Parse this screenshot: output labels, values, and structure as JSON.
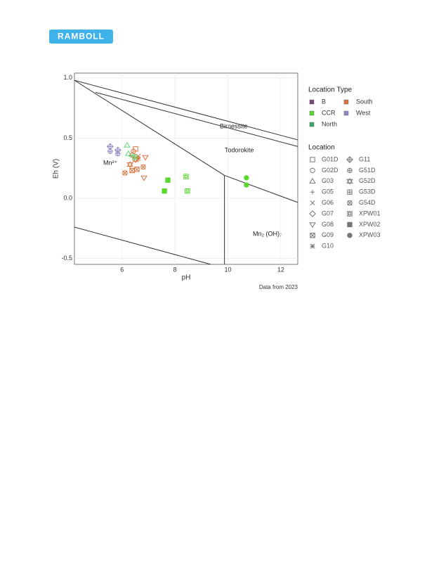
{
  "logo": "RAMBOLL",
  "chart_data": {
    "type": "scatter",
    "x_label": "pH",
    "y_label": "Eh (V)",
    "caption": "Data from 2023",
    "xlim": [
      4.2,
      12.64
    ],
    "ylim": [
      -0.55,
      1.04
    ],
    "xticks": [
      6,
      8,
      10,
      12
    ],
    "yticks": [
      -0.5,
      {
        "value": 0,
        "label": "0.0"
      },
      0.5,
      {
        "value": 1,
        "label": "1.0"
      }
    ],
    "grid": true,
    "boundaries": [
      {
        "x": [
          4.2,
          12.64
        ],
        "y": [
          0.98,
          0.485
        ]
      },
      {
        "x": [
          5.0,
          12.64
        ],
        "y": [
          0.88,
          0.43
        ]
      },
      {
        "x": [
          4.2,
          9.87
        ],
        "y": [
          0.98,
          0.19
        ]
      },
      {
        "x": [
          9.87,
          9.87
        ],
        "y": [
          0.19,
          -0.55
        ]
      },
      {
        "x": [
          9.87,
          12.64
        ],
        "y": [
          0.19,
          -0.035
        ]
      },
      {
        "x": [
          4.2,
          9.35
        ],
        "y": [
          -0.24,
          -0.55
        ]
      }
    ],
    "annotations": [
      "Birnessite",
      "Todorokite",
      "Mn²⁺",
      "Mn₂ (OH)₇"
    ],
    "type_legend": {
      "title": "Location Type",
      "items": [
        {
          "name": "B",
          "color": "#7b4a7a"
        },
        {
          "name": "CCR",
          "color": "#5bd92e"
        },
        {
          "name": "North",
          "color": "#3aa86a"
        },
        {
          "name": "South",
          "color": "#d9733f"
        },
        {
          "name": "West",
          "color": "#8f86c8"
        }
      ]
    },
    "legend_title": "Location",
    "series": [
      {
        "name": "G01D",
        "shape": "square",
        "color": "#d9733f",
        "x": [
          6.51
        ],
        "y": [
          0.41
        ]
      },
      {
        "name": "G02D",
        "shape": "circle",
        "color": "#d9733f",
        "x": [
          6.43
        ],
        "y": [
          0.39
        ]
      },
      {
        "name": "G03",
        "shape": "triangle",
        "color": "#5fd67a",
        "x": [
          6.19,
          6.24
        ],
        "y": [
          0.44,
          0.37
        ]
      },
      {
        "name": "G05",
        "shape": "plus",
        "color": "#5fd67a",
        "x": [
          6.32,
          6.43
        ],
        "y": [
          0.35,
          0.36
        ]
      },
      {
        "name": "G06",
        "shape": "x",
        "color": "#d9733f",
        "x": [
          6.61
        ],
        "y": [
          0.35
        ]
      },
      {
        "name": "G07",
        "shape": "diamond",
        "color": "#d9733f",
        "x": [
          6.4
        ],
        "y": [
          0.36
        ]
      },
      {
        "name": "G08",
        "shape": "tridown",
        "color": "#d9733f",
        "x": [
          6.83,
          6.88
        ],
        "y": [
          0.17,
          0.34
        ]
      },
      {
        "name": "G09",
        "shape": "boxx",
        "color": "#d9733f",
        "x": [
          6.38,
          6.56
        ],
        "y": [
          0.23,
          0.24
        ]
      },
      {
        "name": "G10",
        "shape": "asterisk",
        "color": "#d9733f",
        "x": [
          6.61
        ],
        "y": [
          0.33
        ]
      },
      {
        "name": "G11",
        "shape": "diamondplus",
        "color": "#8f86c8",
        "x": [
          5.55,
          5.84
        ],
        "y": [
          0.43,
          0.4
        ]
      },
      {
        "name": "G51D",
        "shape": "circleplus",
        "color": "#8f86c8",
        "x": [
          5.55,
          5.84
        ],
        "y": [
          0.39,
          0.37
        ]
      },
      {
        "name": "G52D",
        "shape": "startri",
        "color": "#d9733f",
        "x": [
          6.3,
          6.51
        ],
        "y": [
          0.28,
          0.32
        ]
      },
      {
        "name": "G53D",
        "shape": "squareplus",
        "color": "#5fd67a",
        "x": [
          6.48
        ],
        "y": [
          0.34
        ]
      },
      {
        "name": "G54D",
        "shape": "circlex",
        "color": "#d9733f",
        "x": [
          6.11,
          6.8
        ],
        "y": [
          0.21,
          0.26
        ]
      },
      {
        "name": "XPW01",
        "shape": "boxsquare",
        "color": "#5bd92e",
        "x": [
          8.42,
          8.47
        ],
        "y": [
          0.18,
          0.06
        ]
      },
      {
        "name": "XPW02",
        "shape": "squarefill",
        "color": "#5bd92e",
        "x": [
          7.73,
          7.6
        ],
        "y": [
          0.15,
          0.06
        ]
      },
      {
        "name": "XPW03",
        "shape": "circlefill",
        "color": "#5bd92e",
        "x": [
          10.7,
          10.7
        ],
        "y": [
          0.17,
          0.11
        ]
      }
    ]
  }
}
